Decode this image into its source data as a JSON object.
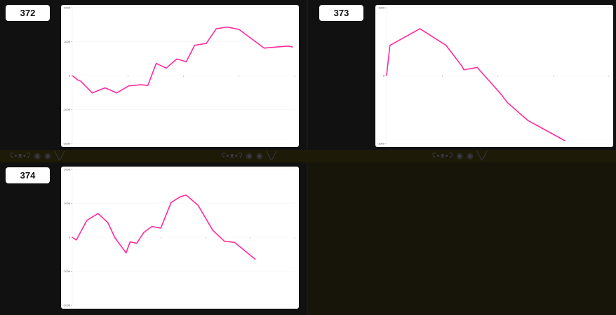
{
  "line_color": "#ff2aa0",
  "panels": [
    {
      "label": "372"
    },
    {
      "label": "373"
    },
    {
      "label": "374"
    }
  ],
  "chart_data": [
    {
      "type": "line",
      "ylim": [
        -2000,
        2000
      ],
      "xlim": [
        0,
        4
      ],
      "yticks": [
        "2000",
        "1000",
        "0",
        "-1000",
        "-2000"
      ],
      "ytick_values": [
        2000,
        1000,
        0,
        -1000,
        -2000
      ],
      "xticks": [
        1,
        2,
        3,
        4
      ],
      "grid": true,
      "x": [
        0,
        0.11,
        0.15,
        0.36,
        0.59,
        0.8,
        1.02,
        1.24,
        1.36,
        1.51,
        1.69,
        1.88,
        2.05,
        2.2,
        2.41,
        2.59,
        2.79,
        3.0,
        3.45,
        3.88,
        3.97
      ],
      "y": [
        0,
        -140,
        -160,
        -510,
        -360,
        -510,
        -300,
        -270,
        -290,
        360,
        220,
        490,
        410,
        890,
        950,
        1380,
        1430,
        1360,
        810,
        870,
        840
      ]
    },
    {
      "type": "line",
      "ylim": [
        -1000,
        1000
      ],
      "xlim": [
        0,
        4
      ],
      "yticks": [
        "1000",
        "0",
        "-1000"
      ],
      "ytick_values": [
        1000,
        0,
        -1000
      ],
      "xticks": [
        1,
        2,
        3,
        4
      ],
      "grid": true,
      "x": [
        0,
        0.06,
        0.6,
        1.07,
        1.35,
        1.39,
        1.63,
        2.06,
        2.17,
        2.54,
        3.21
      ],
      "y": [
        0,
        445,
        690,
        445,
        145,
        85,
        120,
        -275,
        -395,
        -660,
        -960
      ]
    },
    {
      "type": "line",
      "ylim": [
        -2000,
        2000
      ],
      "xlim": [
        0,
        5
      ],
      "yticks": [
        "2000",
        "1000",
        "0",
        "-1000",
        "-2000"
      ],
      "ytick_values": [
        2000,
        1000,
        0,
        -1000,
        -2000
      ],
      "xticks": [
        1,
        2,
        3,
        4,
        5
      ],
      "grid": true,
      "x": [
        0,
        0.09,
        0.33,
        0.58,
        0.8,
        0.96,
        1.21,
        1.3,
        1.45,
        1.61,
        1.79,
        1.99,
        2.22,
        2.42,
        2.56,
        2.83,
        3.16,
        3.42,
        3.65,
        4.12
      ],
      "y": [
        0,
        -80,
        500,
        700,
        435,
        -15,
        -460,
        -135,
        -175,
        145,
        320,
        270,
        1020,
        1190,
        1245,
        940,
        205,
        -115,
        -150,
        -655
      ]
    }
  ]
}
